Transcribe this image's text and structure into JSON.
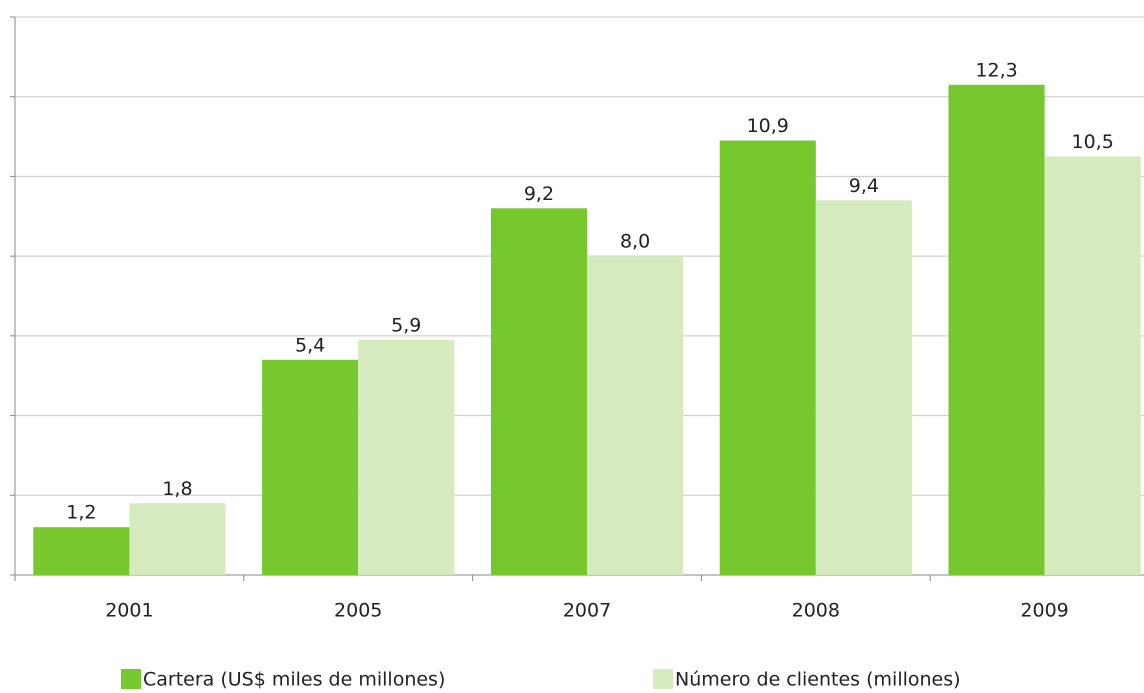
{
  "chart_data": {
    "type": "bar",
    "categories": [
      "2001",
      "2005",
      "2007",
      "2008",
      "2009"
    ],
    "series": [
      {
        "name": "Cartera (US$ miles de millones)",
        "color": "#77c72f",
        "values": [
          1.2,
          5.4,
          9.2,
          10.9,
          12.3
        ],
        "value_labels": [
          "1,2",
          "5,4",
          "9,2",
          "10,9",
          "12,3"
        ]
      },
      {
        "name": "Número de clientes (millones)",
        "color": "#d5eabd",
        "values": [
          1.8,
          5.9,
          8.0,
          9.4,
          10.5
        ],
        "value_labels": [
          "1,8",
          "5,9",
          "8,0",
          "9,4",
          "10,5"
        ]
      }
    ],
    "ylim": [
      0,
      14
    ],
    "yticks": [
      0,
      2,
      4,
      6,
      8,
      10,
      12,
      14
    ],
    "grid": true,
    "legend": "bottom"
  }
}
